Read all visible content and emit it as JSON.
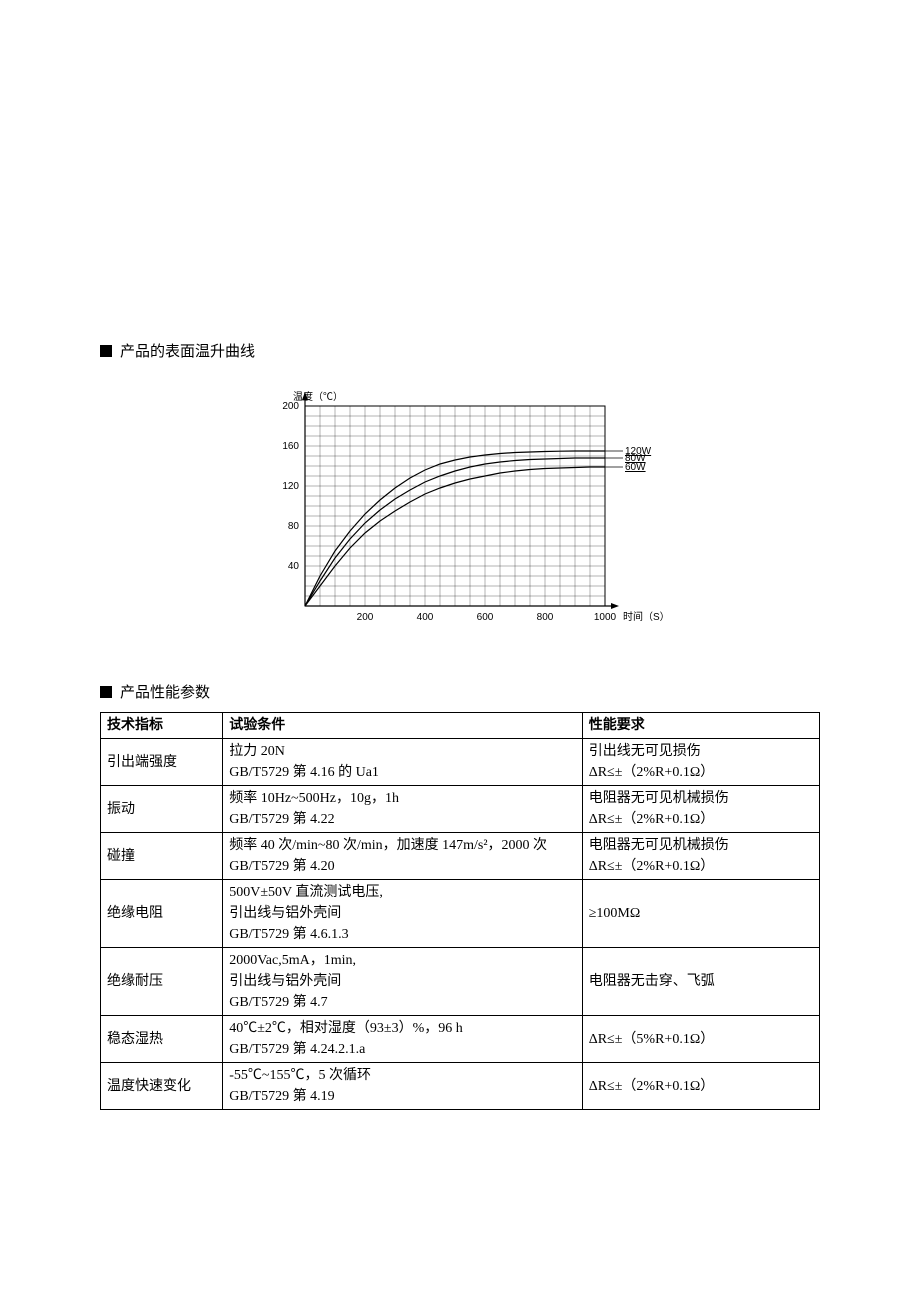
{
  "section1": {
    "title": "产品的表面温升曲线"
  },
  "chart": {
    "type": "line",
    "y_axis_label": "温度（℃）",
    "x_axis_label": "时间（S）",
    "x_min": 0,
    "x_max": 1000,
    "y_min": 0,
    "y_max": 200,
    "x_ticks": [
      200,
      400,
      600,
      800,
      1000
    ],
    "y_ticks": [
      40,
      80,
      120,
      160,
      200
    ],
    "x_minor_step": 50,
    "y_minor_step": 10,
    "background_color": "#ffffff",
    "grid_color": "#000000",
    "axis_color": "#000000",
    "line_color": "#000000",
    "line_width": 1.2,
    "label_fontsize": 10,
    "tick_fontsize": 10,
    "series": [
      {
        "label": "120W",
        "points": [
          [
            0,
            0
          ],
          [
            50,
            30
          ],
          [
            100,
            55
          ],
          [
            150,
            75
          ],
          [
            200,
            92
          ],
          [
            250,
            106
          ],
          [
            300,
            118
          ],
          [
            350,
            128
          ],
          [
            400,
            136
          ],
          [
            450,
            142
          ],
          [
            500,
            146
          ],
          [
            550,
            149
          ],
          [
            600,
            151
          ],
          [
            650,
            152.5
          ],
          [
            700,
            153.5
          ],
          [
            750,
            154
          ],
          [
            800,
            154.5
          ],
          [
            850,
            154.8
          ],
          [
            900,
            155
          ],
          [
            950,
            155
          ],
          [
            1000,
            155
          ]
        ]
      },
      {
        "label": "80W",
        "points": [
          [
            0,
            0
          ],
          [
            50,
            25
          ],
          [
            100,
            48
          ],
          [
            150,
            67
          ],
          [
            200,
            83
          ],
          [
            250,
            96
          ],
          [
            300,
            107
          ],
          [
            350,
            116
          ],
          [
            400,
            124
          ],
          [
            450,
            130
          ],
          [
            500,
            135
          ],
          [
            550,
            139
          ],
          [
            600,
            142
          ],
          [
            650,
            144
          ],
          [
            700,
            145.5
          ],
          [
            750,
            146.5
          ],
          [
            800,
            147
          ],
          [
            850,
            147.5
          ],
          [
            900,
            148
          ],
          [
            950,
            148
          ],
          [
            1000,
            148
          ]
        ]
      },
      {
        "label": "60W",
        "points": [
          [
            0,
            0
          ],
          [
            50,
            20
          ],
          [
            100,
            40
          ],
          [
            150,
            58
          ],
          [
            200,
            73
          ],
          [
            250,
            85
          ],
          [
            300,
            95
          ],
          [
            350,
            104
          ],
          [
            400,
            112
          ],
          [
            450,
            118
          ],
          [
            500,
            123
          ],
          [
            550,
            127
          ],
          [
            600,
            130
          ],
          [
            650,
            133
          ],
          [
            700,
            135
          ],
          [
            750,
            136.5
          ],
          [
            800,
            137.5
          ],
          [
            850,
            138
          ],
          [
            900,
            138.5
          ],
          [
            950,
            139
          ],
          [
            1000,
            139
          ]
        ]
      }
    ]
  },
  "section2": {
    "title": "产品性能参数"
  },
  "table": {
    "columns": [
      "技术指标",
      "试验条件",
      "性能要求"
    ],
    "rows": [
      {
        "c0": "引出端强度",
        "c1": "拉力 20N\nGB/T5729 第 4.16 的 Ua1",
        "c2": "引出线无可见损伤\nΔR≤±（2%R+0.1Ω）"
      },
      {
        "c0": "振动",
        "c1": "频率 10Hz~500Hz，10g，1h\nGB/T5729 第 4.22",
        "c2": "电阻器无可见机械损伤\nΔR≤±（2%R+0.1Ω）"
      },
      {
        "c0": "碰撞",
        "c1": "频率 40 次/min~80 次/min，加速度 147m/s²，2000 次\nGB/T5729 第 4.20",
        "c2": "电阻器无可见机械损伤\nΔR≤±（2%R+0.1Ω）"
      },
      {
        "c0": "绝缘电阻",
        "c1": "500V±50V 直流测试电压,\n引出线与铝外壳间\nGB/T5729 第 4.6.1.3",
        "c2": "≥100MΩ"
      },
      {
        "c0": "绝缘耐压",
        "c1": "2000Vac,5mA，1min,\n引出线与铝外壳间\nGB/T5729 第 4.7",
        "c2": "电阻器无击穿、飞弧"
      },
      {
        "c0": "稳态湿热",
        "c1": "40℃±2℃，相对湿度（93±3）%，96 h\nGB/T5729 第 4.24.2.1.a",
        "c2": "ΔR≤±（5%R+0.1Ω）"
      },
      {
        "c0": "温度快速变化",
        "c1": "-55℃~155℃，5 次循环\nGB/T5729 第 4.19",
        "c2": "ΔR≤±（2%R+0.1Ω）"
      }
    ]
  }
}
